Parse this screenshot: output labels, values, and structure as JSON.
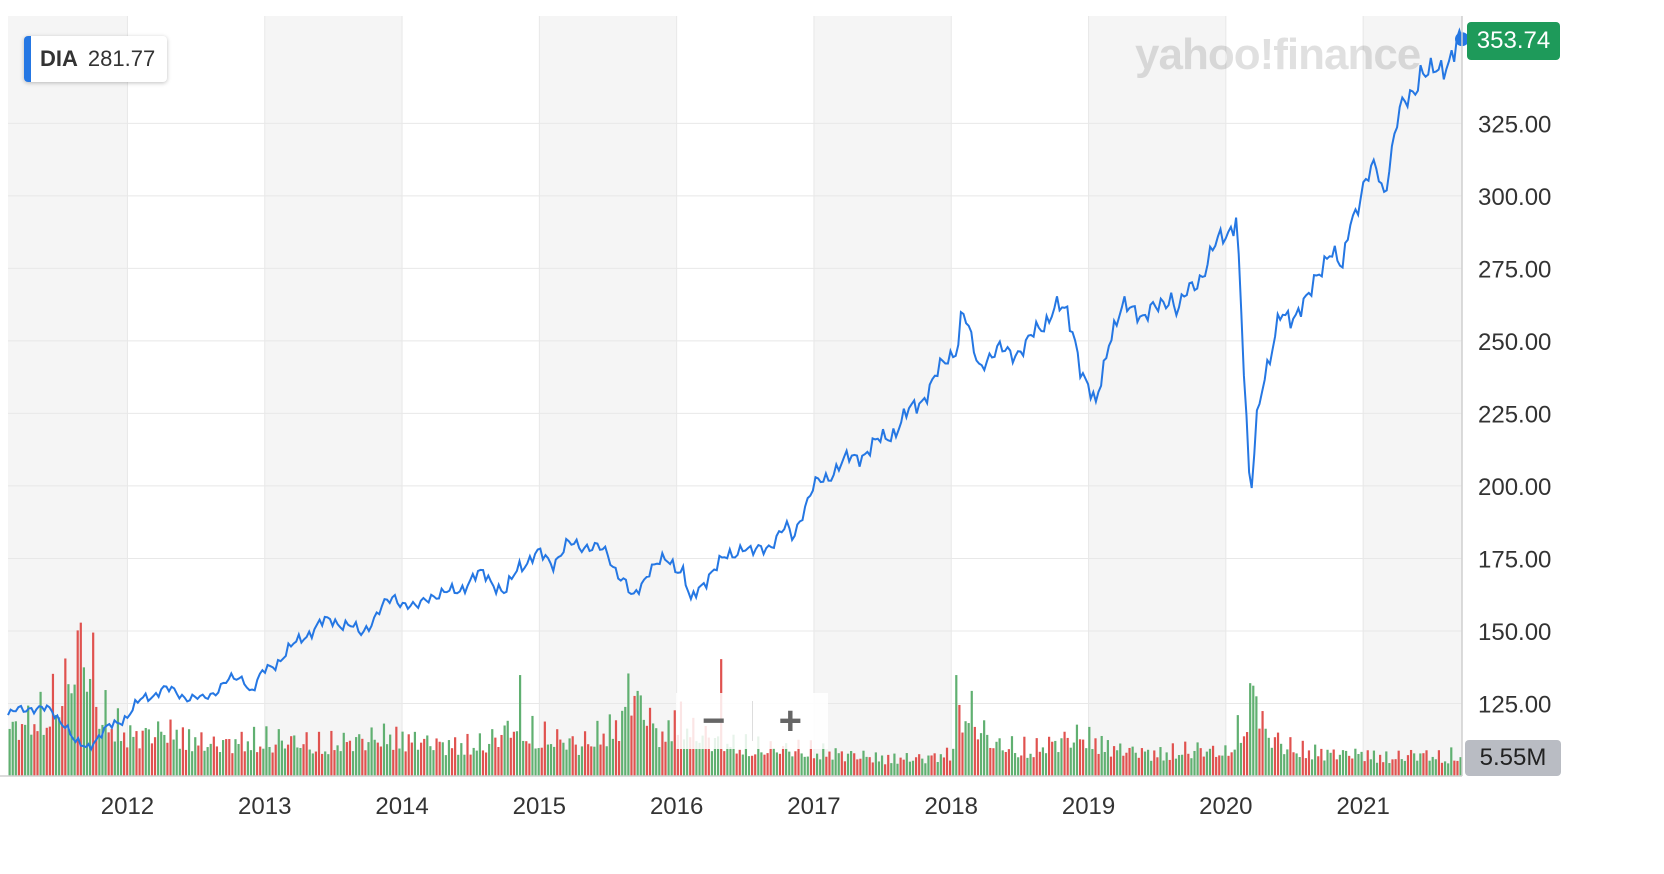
{
  "legend": {
    "symbol": "DIA",
    "value": "281.77"
  },
  "watermark": "yahoo!finance",
  "price_tag": "353.74",
  "volume_tag": "5.55M",
  "zoom": {
    "minus": "−",
    "plus": "+"
  },
  "colors": {
    "line": "#2577e3",
    "price_tag": "#1e9a5a",
    "vol_up": "#60b071",
    "vol_down": "#e0524f",
    "band": "#f5f5f5"
  },
  "chart_data": {
    "type": "line",
    "title": "",
    "xlabel": "",
    "ylabel": "",
    "x_ticks": [
      "2012",
      "2013",
      "2014",
      "2015",
      "2016",
      "2017",
      "2018",
      "2019",
      "2020",
      "2021"
    ],
    "y_ticks": [
      "125.00",
      "150.00",
      "175.00",
      "200.00",
      "225.00",
      "250.00",
      "275.00",
      "300.00",
      "325.00"
    ],
    "ylim": [
      100,
      362
    ],
    "xlim": [
      2011.13,
      2021.72
    ],
    "grid": true,
    "legend": "top-left",
    "series": [
      {
        "name": "DIA",
        "x": [
          2011.13,
          2011.3,
          2011.45,
          2011.55,
          2011.62,
          2011.7,
          2011.85,
          2012.0,
          2012.1,
          2012.25,
          2012.4,
          2012.55,
          2012.7,
          2012.85,
          2012.9,
          2013.0,
          2013.15,
          2013.3,
          2013.4,
          2013.5,
          2013.6,
          2013.7,
          2013.8,
          2013.95,
          2014.1,
          2014.2,
          2014.3,
          2014.5,
          2014.6,
          2014.65,
          2014.75,
          2014.85,
          2015.0,
          2015.1,
          2015.2,
          2015.35,
          2015.5,
          2015.62,
          2015.68,
          2015.8,
          2015.95,
          2016.05,
          2016.1,
          2016.25,
          2016.4,
          2016.48,
          2016.55,
          2016.7,
          2016.8,
          2016.85,
          2016.9,
          2017.0,
          2017.15,
          2017.3,
          2017.45,
          2017.6,
          2017.75,
          2017.9,
          2018.05,
          2018.08,
          2018.12,
          2018.2,
          2018.25,
          2018.4,
          2018.55,
          2018.65,
          2018.75,
          2018.85,
          2018.9,
          2018.95,
          2019.05,
          2019.15,
          2019.25,
          2019.35,
          2019.4,
          2019.5,
          2019.6,
          2019.65,
          2019.75,
          2019.9,
          2020.0,
          2020.08,
          2020.12,
          2020.18,
          2020.22,
          2020.28,
          2020.32,
          2020.4,
          2020.5,
          2020.6,
          2020.68,
          2020.75,
          2020.85,
          2020.9,
          2021.0,
          2021.1,
          2021.15,
          2021.25,
          2021.35,
          2021.42,
          2021.48,
          2021.55,
          2021.6,
          2021.72
        ],
        "values": [
          121,
          124,
          122,
          118,
          111,
          110,
          116,
          121,
          126,
          130,
          128,
          126,
          132,
          134,
          129,
          136,
          142,
          149,
          152,
          154,
          152,
          149,
          155,
          162,
          157,
          163,
          162,
          167,
          170,
          168,
          162,
          173,
          176,
          174,
          179,
          180,
          176,
          167,
          160,
          172,
          174,
          171,
          159,
          171,
          176,
          180,
          176,
          181,
          185,
          182,
          190,
          199,
          206,
          210,
          214,
          220,
          228,
          238,
          250,
          262,
          253,
          241,
          245,
          246,
          248,
          255,
          262,
          258,
          252,
          240,
          226,
          252,
          260,
          262,
          259,
          260,
          267,
          260,
          268,
          280,
          287,
          294,
          250,
          192,
          223,
          240,
          243,
          258,
          260,
          263,
          275,
          282,
          273,
          292,
          302,
          310,
          302,
          325,
          336,
          344,
          340,
          343,
          347,
          354
        ]
      }
    ],
    "volume": {
      "years": [
        2011.13,
        2011.4,
        2011.6,
        2011.65,
        2011.8,
        2012.0,
        2012.3,
        2012.6,
        2012.9,
        2013.1,
        2013.4,
        2013.7,
        2013.9,
        2014.1,
        2014.3,
        2014.6,
        2014.8,
        2015.0,
        2015.3,
        2015.6,
        2015.65,
        2015.9,
        2016.0,
        2016.1,
        2016.4,
        2016.7,
        2016.9,
        2017.2,
        2017.5,
        2017.8,
        2018.0,
        2018.1,
        2018.3,
        2018.6,
        2018.8,
        2018.95,
        2019.2,
        2019.5,
        2019.8,
        2020.0,
        2020.15,
        2020.2,
        2020.3,
        2020.5,
        2020.8,
        2021.0,
        2021.2,
        2021.4,
        2021.6,
        2021.72
      ],
      "values": [
        10,
        14,
        22,
        30,
        15,
        9,
        10,
        7,
        8,
        8,
        7,
        8,
        9,
        8,
        7,
        7,
        11,
        9,
        7,
        12,
        20,
        8,
        14,
        10,
        7,
        6,
        6,
        5,
        4,
        4,
        5,
        16,
        7,
        6,
        8,
        9,
        6,
        5,
        6,
        5,
        13,
        17,
        9,
        6,
        5,
        5,
        4,
        5,
        4,
        5.55
      ]
    }
  }
}
